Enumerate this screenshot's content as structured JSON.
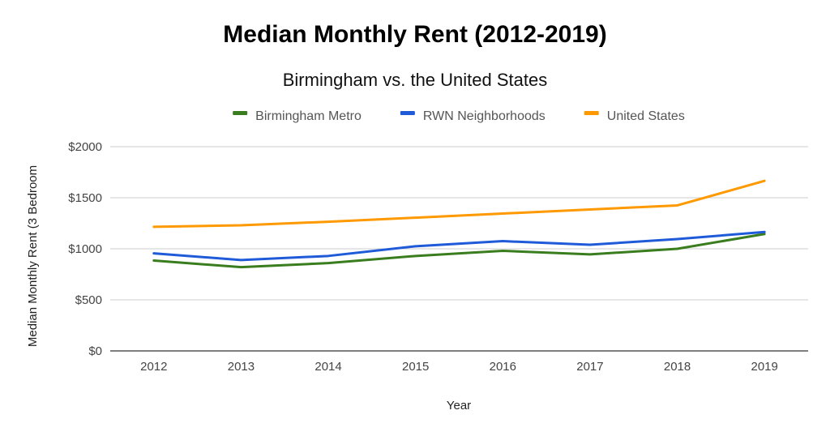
{
  "chart_data": {
    "type": "line",
    "title": "Median Monthly Rent (2012-2019)",
    "subtitle": "Birmingham vs. the United States",
    "xlabel": "Year",
    "ylabel": "Median Monthly Rent (3 Bedroom",
    "categories": [
      "2012",
      "2013",
      "2014",
      "2015",
      "2016",
      "2017",
      "2018",
      "2019"
    ],
    "ylim": [
      0,
      2000
    ],
    "yticks": [
      0,
      500,
      1000,
      1500,
      2000
    ],
    "ytick_labels": [
      "$0",
      "$500",
      "$1000",
      "$1500",
      "$2000"
    ],
    "grid": true,
    "legend_position": "top",
    "series": [
      {
        "name": "Birmingham Metro",
        "color": "#3a7d1e",
        "values": [
          885,
          820,
          860,
          930,
          980,
          945,
          1000,
          1145
        ]
      },
      {
        "name": "RWN Neighborhoods",
        "color": "#1f5bd8",
        "values": [
          955,
          890,
          930,
          1025,
          1075,
          1040,
          1095,
          1165
        ]
      },
      {
        "name": "United States",
        "color": "#ff9900",
        "values": [
          1215,
          1230,
          1265,
          1305,
          1345,
          1385,
          1425,
          1665
        ]
      }
    ]
  }
}
